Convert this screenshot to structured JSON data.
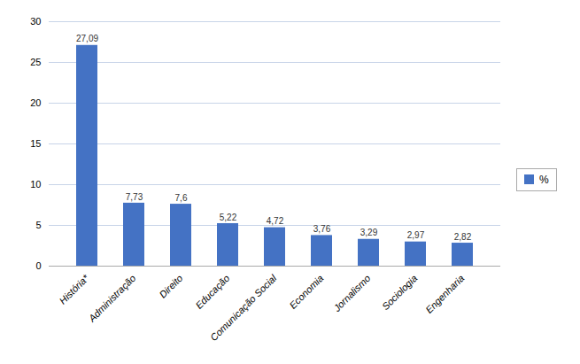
{
  "chart_data": {
    "type": "bar",
    "categories": [
      "História*",
      "Administração",
      "Direito",
      "Educação",
      "Comunicação Social",
      "Economia",
      "Jornalismo",
      "Sociologia",
      "Engenharia"
    ],
    "series": [
      {
        "name": "%",
        "color": "#4472c4",
        "values": [
          27.09,
          7.73,
          7.6,
          5.22,
          4.72,
          3.76,
          3.29,
          2.97,
          2.82
        ],
        "value_labels": [
          "27,09",
          "7,73",
          "7,6",
          "5,22",
          "4,72",
          "3,76",
          "3,29",
          "2,97",
          "2,82"
        ]
      }
    ],
    "ylim": [
      0,
      30
    ],
    "yticks": [
      0,
      5,
      10,
      15,
      20,
      25,
      30
    ],
    "grid": true,
    "data_labels": true,
    "legend": "right"
  }
}
